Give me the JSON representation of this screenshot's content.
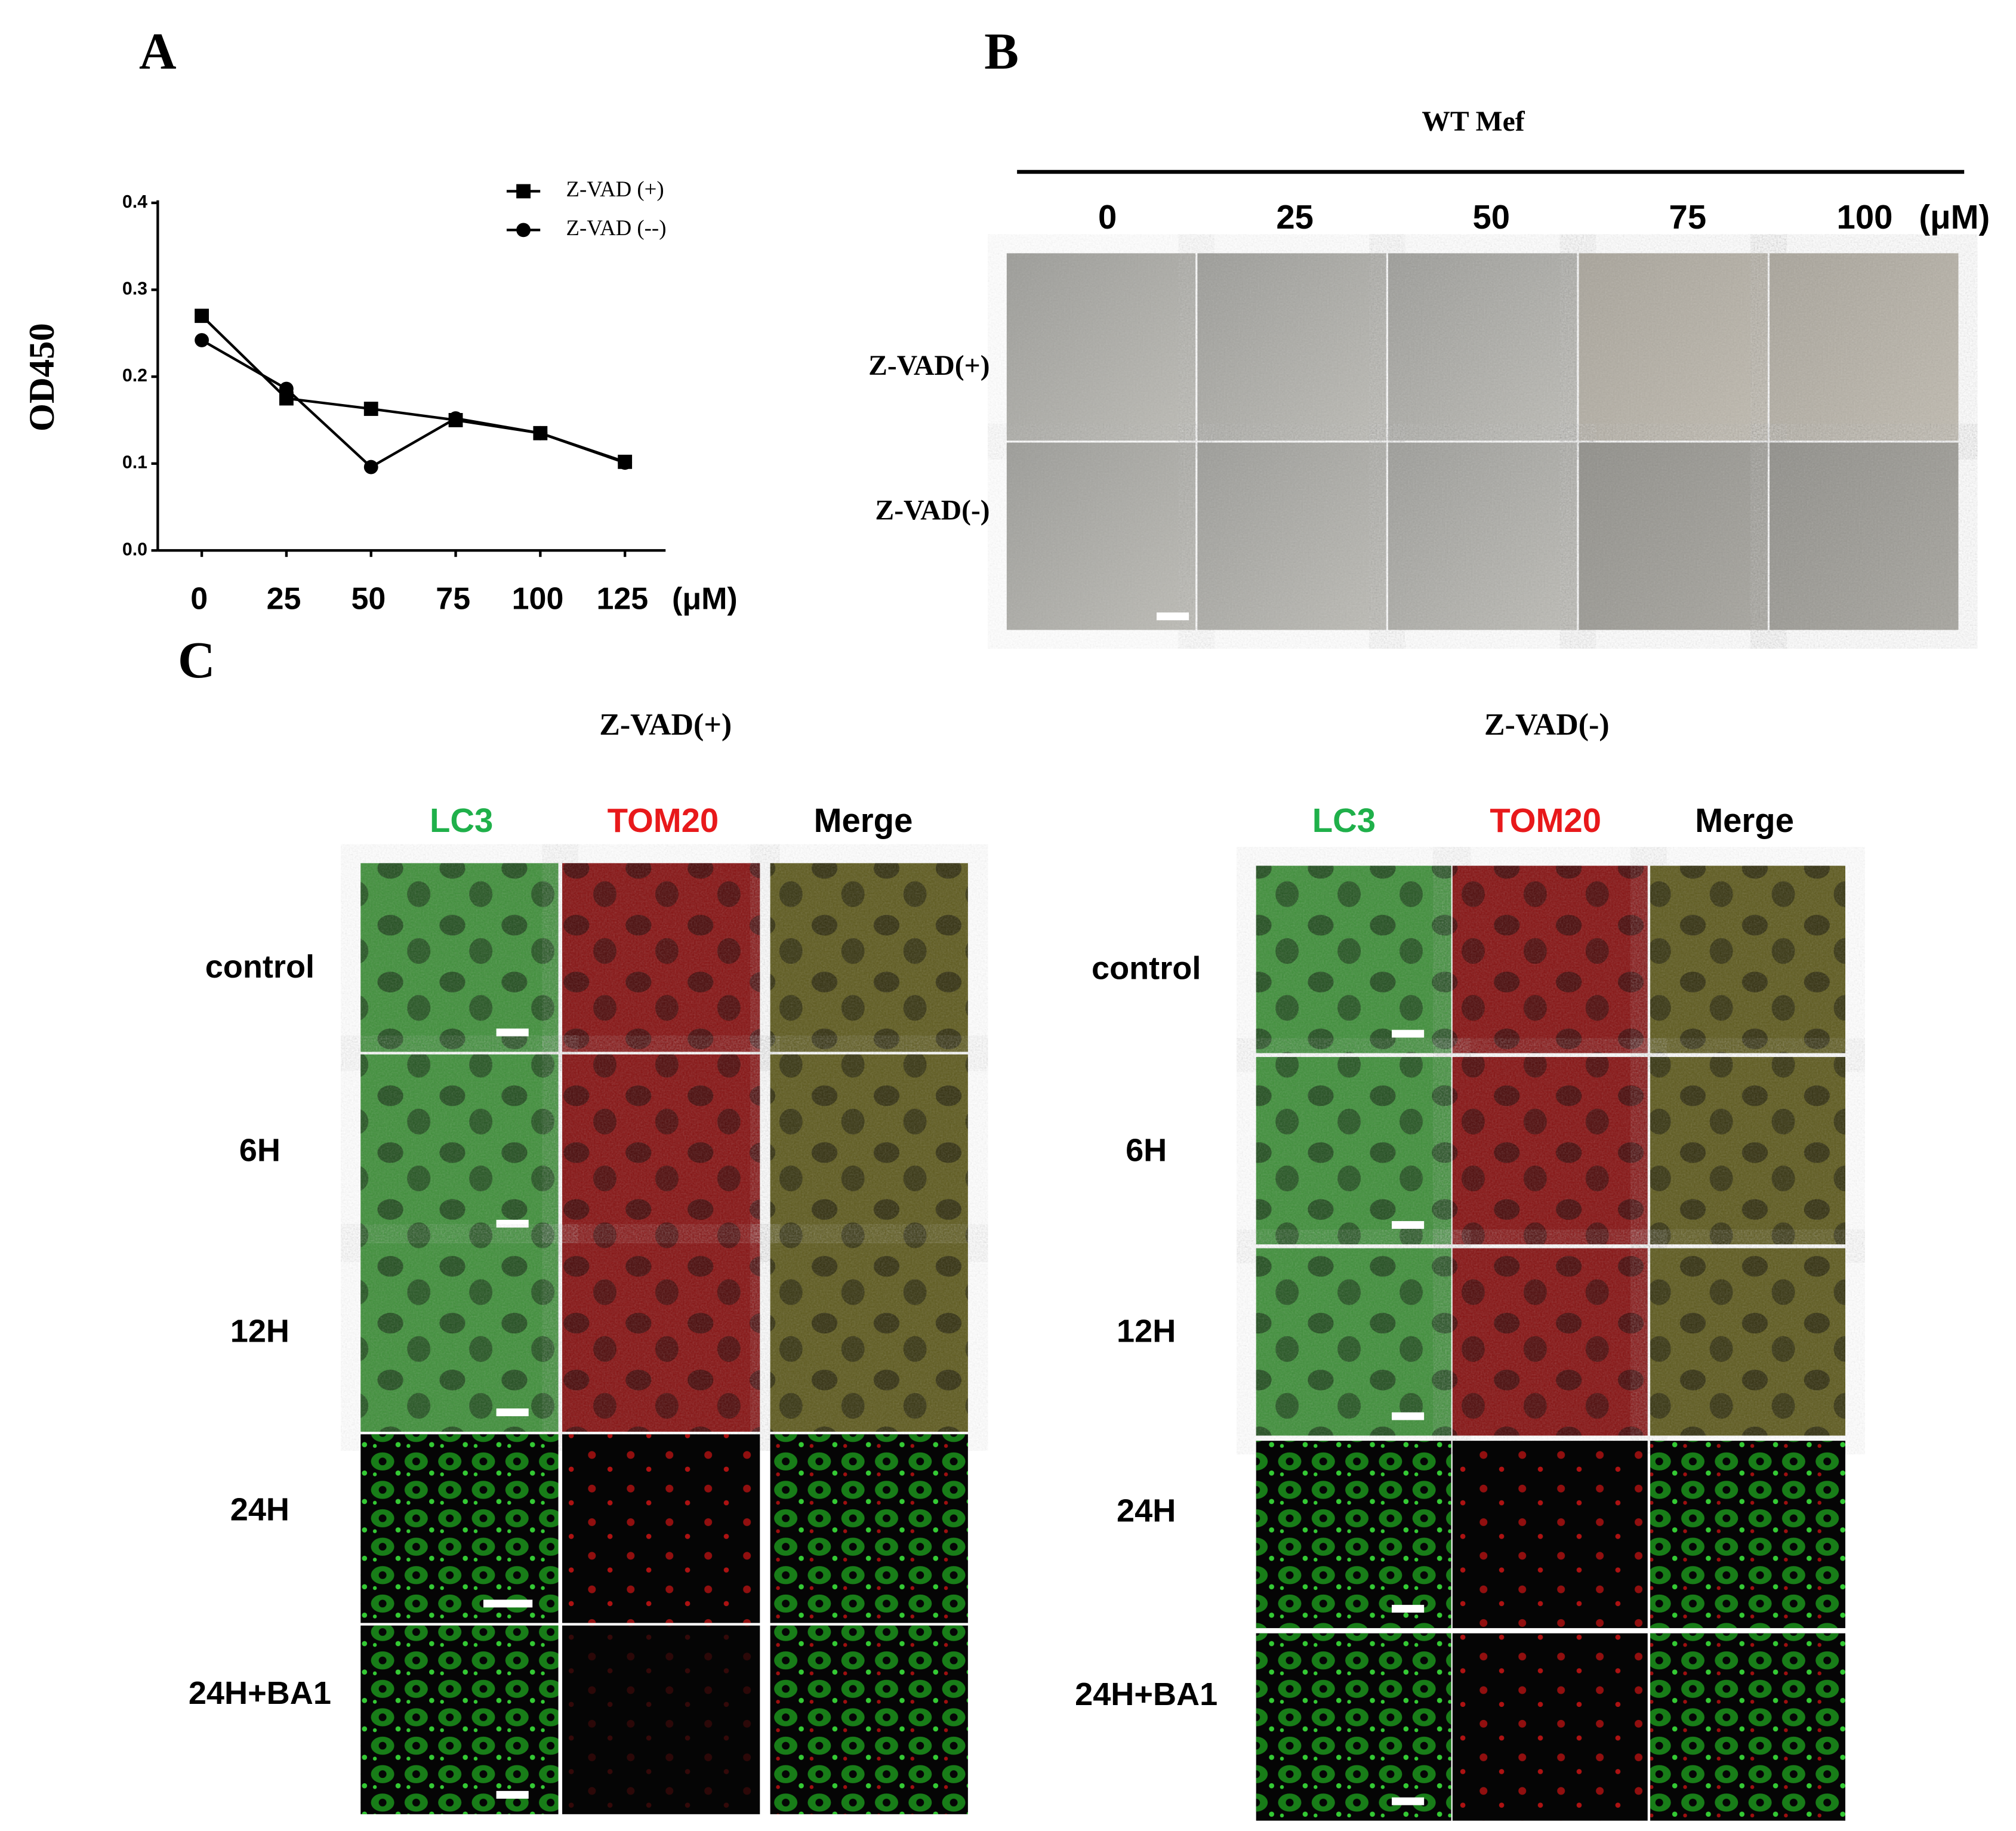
{
  "chart_data": {
    "type": "line",
    "panel_label": "A",
    "x": [
      0,
      25,
      50,
      75,
      100,
      125
    ],
    "x_label": "(μM)",
    "y_label": "OD450",
    "xlim": [
      -13,
      137
    ],
    "xticks": [
      0,
      25,
      50,
      75,
      100,
      125
    ],
    "ylim": [
      0,
      0.4
    ],
    "yticks": [
      {
        "value": 0,
        "label": "0.0"
      },
      0.1,
      0.2,
      0.3,
      0.4
    ],
    "legend": "top-right",
    "series": [
      {
        "name": "Z-VAD (+)",
        "color": "#000000",
        "marker": "square",
        "values": [
          0.27,
          0.175,
          0.163,
          0.15,
          0.135,
          0.102
        ]
      },
      {
        "name": "Z-VAD (--)",
        "color": "#000000",
        "marker": "circle",
        "values": [
          0.242,
          0.186,
          0.096,
          0.152,
          0.135,
          0.101
        ]
      }
    ]
  },
  "panel_b": {
    "label": "B",
    "title": "WT Mef",
    "columns": [
      "0",
      "25",
      "50",
      "75",
      "100"
    ],
    "unit": "(μM)",
    "rows": [
      "Z-VAD(+)",
      "Z-VAD(-)"
    ]
  },
  "panel_c": {
    "label": "C",
    "groups": [
      {
        "title": "Z-VAD(+)",
        "channels": [
          "LC3",
          "TOM20",
          "Merge"
        ],
        "rows": [
          "control",
          "6H",
          "12H",
          "24H",
          "24H+BA1"
        ]
      },
      {
        "title": "Z-VAD(-)",
        "channels": [
          "LC3",
          "TOM20",
          "Merge"
        ],
        "rows": [
          "control",
          "6H",
          "12H",
          "24H",
          "24H+BA1"
        ]
      }
    ]
  }
}
